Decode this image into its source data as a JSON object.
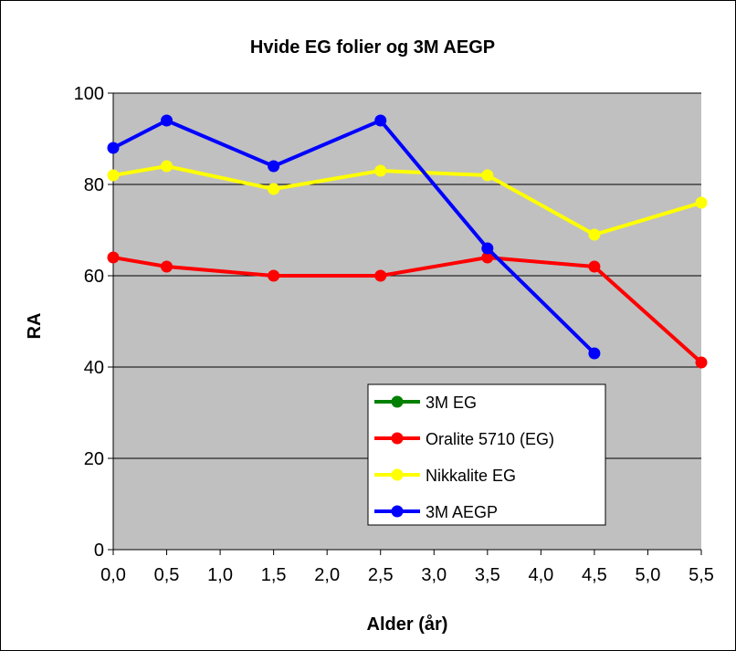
{
  "chart_data": {
    "type": "line",
    "title": "Hvide EG folier og 3M AEGP",
    "xlabel": "Alder (år)",
    "ylabel": "RA",
    "x_ticks": [
      "0,0",
      "0,5",
      "1,0",
      "1,5",
      "2,0",
      "2,5",
      "3,0",
      "3,5",
      "4,0",
      "4,5",
      "5,0",
      "5,5"
    ],
    "y_ticks": [
      "0",
      "20",
      "40",
      "60",
      "80",
      "100"
    ],
    "xlim": [
      0,
      5.5
    ],
    "ylim": [
      0,
      100
    ],
    "grid": "horizontal",
    "plot_background": "#c0c0c0",
    "legend_position": "bottom-center",
    "series": [
      {
        "name": "3M EG",
        "color": "#008000",
        "x": [],
        "y": []
      },
      {
        "name": "Oralite 5710 (EG)",
        "color": "#ff0000",
        "x": [
          0,
          0.5,
          1.5,
          2.5,
          3.5,
          4.5,
          5.5
        ],
        "y": [
          64,
          62,
          60,
          60,
          64,
          62,
          41
        ]
      },
      {
        "name": "Nikkalite EG",
        "color": "#ffff00",
        "x": [
          0,
          0.5,
          1.5,
          2.5,
          3.5,
          4.5,
          5.5
        ],
        "y": [
          82,
          84,
          79,
          83,
          82,
          69,
          76
        ]
      },
      {
        "name": "3M AEGP",
        "color": "#0000ff",
        "x": [
          0,
          0.5,
          1.5,
          2.5,
          3.5,
          4.5
        ],
        "y": [
          88,
          94,
          84,
          94,
          66,
          43
        ]
      }
    ]
  }
}
